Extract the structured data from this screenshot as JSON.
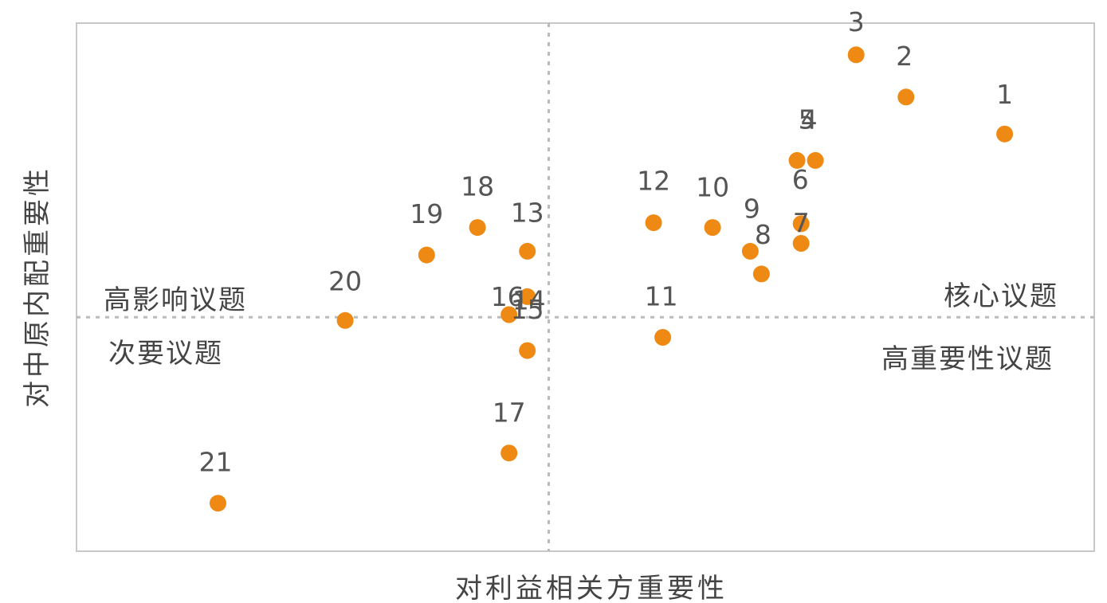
{
  "chart_data": {
    "type": "scatter",
    "xlabel": "对利益相关方重要性",
    "ylabel": "对中原内配重要性",
    "xlim": [
      0,
      100
    ],
    "ylim": [
      0,
      100
    ],
    "grid": false,
    "colors": {
      "point": "#EE8A14",
      "divider": "#BBBBBB",
      "frame": "#C8C8C8"
    },
    "dividers": {
      "x": 46.4,
      "y": 44.3
    },
    "quadrant_labels": {
      "top_left": "高影响议题",
      "top_right": "核心议题",
      "bottom_left": "次要议题",
      "bottom_right": "高重要性议题"
    },
    "points": [
      {
        "label": "1",
        "x": 91.2,
        "y": 79.0
      },
      {
        "label": "2",
        "x": 81.5,
        "y": 86.0
      },
      {
        "label": "3",
        "x": 76.6,
        "y": 94.0
      },
      {
        "label": "4",
        "x": 72.6,
        "y": 74.0
      },
      {
        "label": "5",
        "x": 70.8,
        "y": 74.0
      },
      {
        "label": "6",
        "x": 71.2,
        "y": 62.0
      },
      {
        "label": "7",
        "x": 71.2,
        "y": 58.3
      },
      {
        "label": "8",
        "x": 67.3,
        "y": 52.5
      },
      {
        "label": "9",
        "x": 66.2,
        "y": 56.8
      },
      {
        "label": "10",
        "x": 62.5,
        "y": 61.3
      },
      {
        "label": "11",
        "x": 57.6,
        "y": 40.5
      },
      {
        "label": "12",
        "x": 56.7,
        "y": 62.2
      },
      {
        "label": "13",
        "x": 44.3,
        "y": 56.8
      },
      {
        "label": "14",
        "x": 44.3,
        "y": 48.2
      },
      {
        "label": "15",
        "x": 44.3,
        "y": 38.0
      },
      {
        "label": "16",
        "x": 42.5,
        "y": 44.8
      },
      {
        "label": "17",
        "x": 42.5,
        "y": 18.6
      },
      {
        "label": "18",
        "x": 39.4,
        "y": 61.3
      },
      {
        "label": "19",
        "x": 34.4,
        "y": 56.1
      },
      {
        "label": "20",
        "x": 26.4,
        "y": 43.7
      },
      {
        "label": "21",
        "x": 13.9,
        "y": 9.1
      }
    ]
  }
}
